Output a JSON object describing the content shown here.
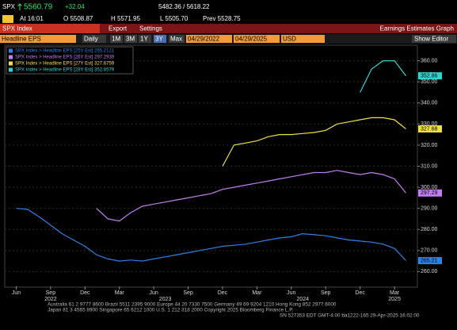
{
  "ui": {
    "quote": {
      "ticker": "SPX",
      "last": "5560.79",
      "change": "+32.04",
      "range": "5482.36 / 5618.22",
      "time": "At 16:01",
      "open": "O 5508.87",
      "high": "H 5571.95",
      "low": "L 5505.70",
      "prev": "Prev 5528.75"
    },
    "menu": {
      "security": "SPX Index",
      "export": "Export",
      "settings": "Settings",
      "function": "Earnings Estimates Graph"
    },
    "toolbar": {
      "field": "Headline EPS",
      "period": "Daily",
      "ranges": [
        "1M",
        "3M",
        "1Y",
        "3Y",
        "Max"
      ],
      "start": "04/29/2022",
      "end": "04/29/2025",
      "currency": "USD",
      "editor": "Show Editor"
    },
    "footer": [
      "Australia 61 2 9777 8600 Brazil 5511 2395 9000 Europe 44 20 7330 7500 Germany 49 69 9204 1210 Hong Kong 852 2977 6000",
      "Japan 81 3 4565 8900        Singapore 65 6212 1000        U.S. 1 212 318 2000        Copyright 2025 Bloomberg Finance L.P.",
      "SN 527353 EDT  GMT-4:00 ba1222-165 29-Apr-2025 16:02:00"
    ]
  },
  "chart_data": {
    "type": "line",
    "x": [
      "2022-06",
      "2022-07",
      "2022-08",
      "2022-09",
      "2022-10",
      "2022-11",
      "2022-12",
      "2023-01",
      "2023-02",
      "2023-03",
      "2023-04",
      "2023-05",
      "2023-06",
      "2023-07",
      "2023-08",
      "2023-09",
      "2023-10",
      "2023-11",
      "2023-12",
      "2024-01",
      "2024-02",
      "2024-03",
      "2024-04",
      "2024-05",
      "2024-06",
      "2024-07",
      "2024-08",
      "2024-09",
      "2024-10",
      "2024-11",
      "2024-12",
      "2025-01",
      "2025-02",
      "2025-03",
      "2025-04"
    ],
    "xlim": [
      "2022-05",
      "2025-05"
    ],
    "xticks": [
      {
        "value": "2022-06",
        "label": "Jun"
      },
      {
        "value": "2022-09",
        "label": "Sep"
      },
      {
        "value": "2022-12",
        "label": "Dec"
      },
      {
        "value": "2023-03",
        "label": "Mar"
      },
      {
        "value": "2023-06",
        "label": "Jun"
      },
      {
        "value": "2023-09",
        "label": "Sep"
      },
      {
        "value": "2023-12",
        "label": "Dec"
      },
      {
        "value": "2024-03",
        "label": "Mar"
      },
      {
        "value": "2024-06",
        "label": "Jun"
      },
      {
        "value": "2024-09",
        "label": "Sep"
      },
      {
        "value": "2024-12",
        "label": "Dec"
      },
      {
        "value": "2025-03",
        "label": "Mar"
      }
    ],
    "year_ticks": [
      {
        "value": "2022-09",
        "label": "2022"
      },
      {
        "value": "2023-07",
        "label": "2023"
      },
      {
        "value": "2024-07",
        "label": "2024"
      },
      {
        "value": "2025-03",
        "label": "2025"
      }
    ],
    "ylim": [
      253,
      367
    ],
    "yticks": [
      {
        "value": 260,
        "label": "260.00"
      },
      {
        "value": 270,
        "label": "270.00"
      },
      {
        "value": 280,
        "label": "280.00"
      },
      {
        "value": 290,
        "label": "290.00"
      },
      {
        "value": 300,
        "label": "300.00"
      },
      {
        "value": 310,
        "label": "310.00"
      },
      {
        "value": 320,
        "label": "320.00"
      },
      {
        "value": 330,
        "label": "330.00"
      },
      {
        "value": 340,
        "label": "340.00"
      },
      {
        "value": 350,
        "label": "350.00"
      },
      {
        "value": 360,
        "label": "360.00"
      }
    ],
    "grid": true,
    "series": [
      {
        "name": "SPX Index > Headline EPS [25Y Est] 265.2121",
        "color": "#2f80e8",
        "values": [
          290,
          289.5,
          286,
          282,
          278,
          275,
          272,
          268,
          266,
          265,
          265.5,
          265,
          266,
          267,
          268,
          269,
          270,
          271,
          272,
          272.5,
          273,
          274,
          275,
          276,
          276.5,
          278,
          277.5,
          277,
          276,
          275,
          274.5,
          274,
          273,
          271,
          265.21
        ]
      },
      {
        "name": "SPX Index > Headline EPS [26Y Est] 297.2939",
        "color": "#c07ef0",
        "values": [
          null,
          null,
          null,
          null,
          null,
          null,
          null,
          290,
          285,
          284,
          288,
          291,
          292,
          293,
          294,
          295,
          296,
          297,
          299,
          300,
          301,
          302,
          303,
          304,
          305,
          306,
          307,
          307,
          308,
          307,
          306,
          307,
          306,
          304,
          297.29
        ]
      },
      {
        "name": "SPX Index > Headline EPS [27Y Est] 327.6759",
        "color": "#f0e040",
        "values": [
          null,
          null,
          null,
          null,
          null,
          null,
          null,
          null,
          null,
          null,
          null,
          null,
          null,
          null,
          null,
          null,
          null,
          null,
          310,
          320,
          321,
          322,
          324,
          325,
          325,
          325.5,
          326,
          327,
          330,
          331,
          332,
          333,
          333,
          332,
          327.68
        ]
      },
      {
        "name": "SPX Index > Headline EPS [28Y Est] 352.8579",
        "color": "#30d2d2",
        "values": [
          null,
          null,
          null,
          null,
          null,
          null,
          null,
          null,
          null,
          null,
          null,
          null,
          null,
          null,
          null,
          null,
          null,
          null,
          null,
          null,
          null,
          null,
          null,
          null,
          null,
          null,
          null,
          null,
          null,
          null,
          345,
          356,
          360,
          360,
          352.86
        ]
      }
    ]
  }
}
